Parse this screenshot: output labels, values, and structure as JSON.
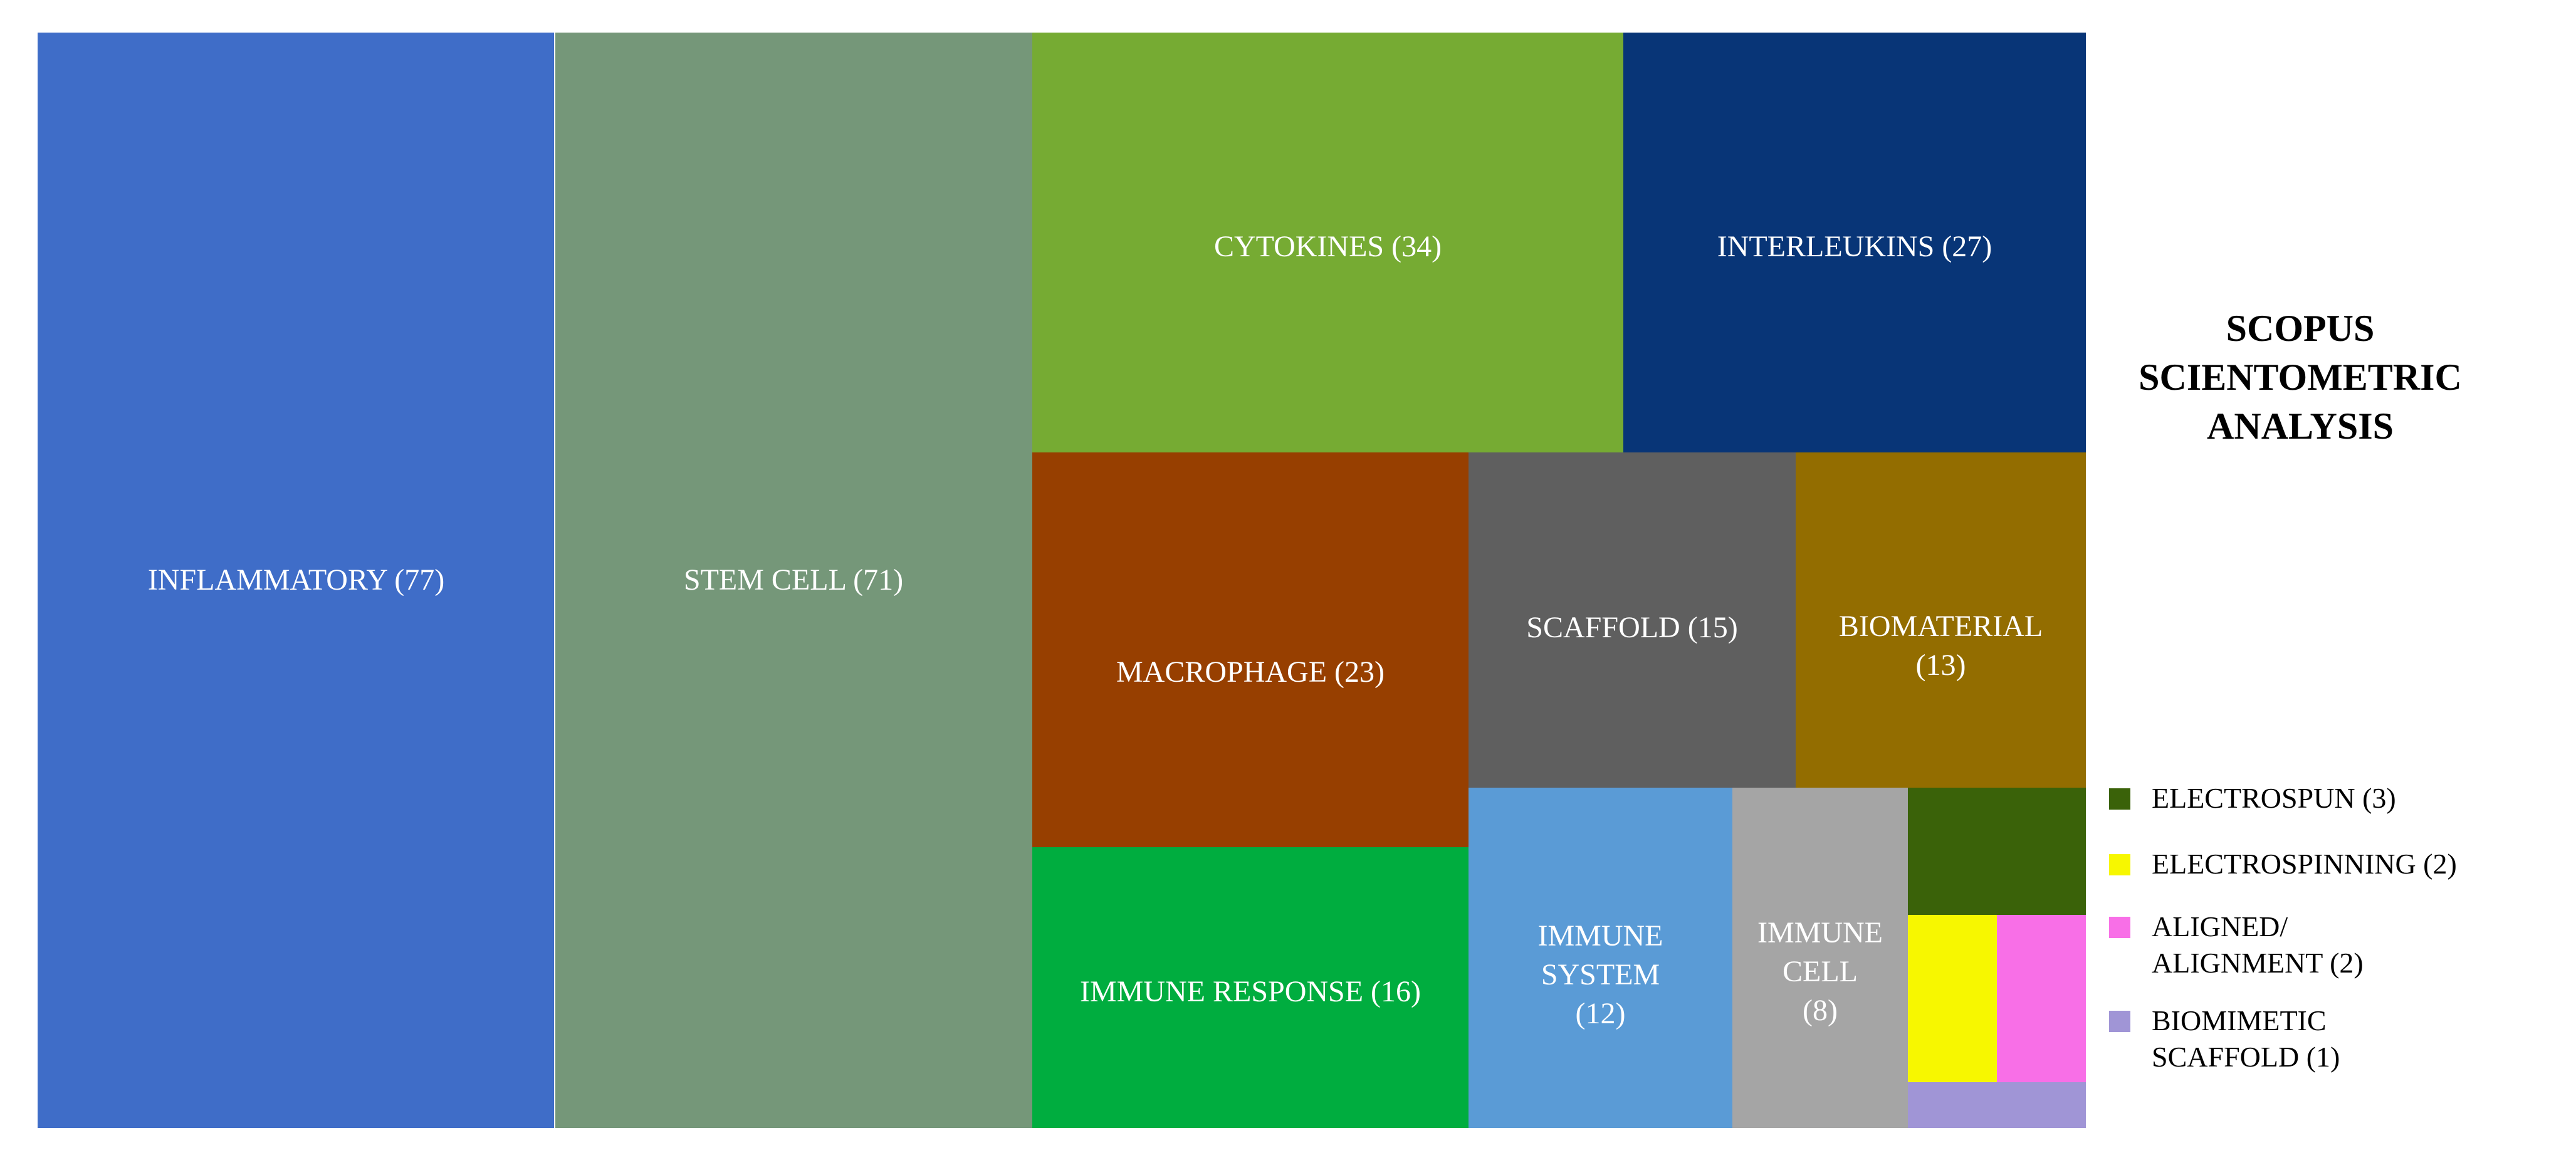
{
  "chart_data": {
    "type": "treemap",
    "title_lines": [
      "SCOPUS",
      "SCIENTOMETRIC",
      "ANALYSIS"
    ],
    "items": [
      {
        "label": "INFLAMMATORY (77)",
        "name": "INFLAMMATORY",
        "value": 77,
        "color": "#3F6DC8"
      },
      {
        "label": "STEM CELL (71)",
        "name": "STEM CELL",
        "value": 71,
        "color": "#759779"
      },
      {
        "label": "CYTOKINES (34)",
        "name": "CYTOKINES",
        "value": 34,
        "color": "#76AB33"
      },
      {
        "label": "INTERLEUKINS (27)",
        "name": "INTERLEUKINS",
        "value": 27,
        "color": "#083577"
      },
      {
        "label": "MACROPHAGE (23)",
        "name": "MACROPHAGE",
        "value": 23,
        "color": "#973F00"
      },
      {
        "label": "SCAFFOLD (15)",
        "name": "SCAFFOLD",
        "value": 15,
        "color": "#5F5F5F"
      },
      {
        "label": "BIOMATERIAL (13)",
        "name": "BIOMATERIAL",
        "value": 13,
        "color": "#936D00"
      },
      {
        "label": "IMMUNE RESPONSE (16)",
        "name": "IMMUNE RESPONSE",
        "value": 16,
        "color": "#00AD3F"
      },
      {
        "label": "IMMUNE SYSTEM (12)",
        "name": "IMMUNE SYSTEM",
        "value": 12,
        "color": "#5A9BD6"
      },
      {
        "label": "IMMUNE CELL (8)",
        "name": "IMMUNE CELL",
        "value": 8,
        "color": "#A5A5A5"
      },
      {
        "label": "",
        "name": "ELECTROSPUN",
        "value": 3,
        "color": "#3A6209"
      },
      {
        "label": "",
        "name": "ELECTROSPINNING",
        "value": 2,
        "color": "#F7F700"
      },
      {
        "label": "",
        "name": "ALIGNED/ ALIGNMENT",
        "value": 2,
        "color": "#F86FE7"
      },
      {
        "label": "",
        "name": "BIOMIMETIC SCAFFOLD",
        "value": 1,
        "color": "#A095D6"
      }
    ],
    "legend": [
      {
        "lines": [
          "ELECTROSPUN (3)"
        ],
        "color": "#3A6209"
      },
      {
        "lines": [
          "ELECTROSPINNING (2)"
        ],
        "color": "#F7F700"
      },
      {
        "lines": [
          "ALIGNED/",
          "ALIGNMENT (2)"
        ],
        "color": "#F86FE7"
      },
      {
        "lines": [
          "BIOMIMETIC",
          "SCAFFOLD (1)"
        ],
        "color": "#A095D6"
      }
    ]
  }
}
